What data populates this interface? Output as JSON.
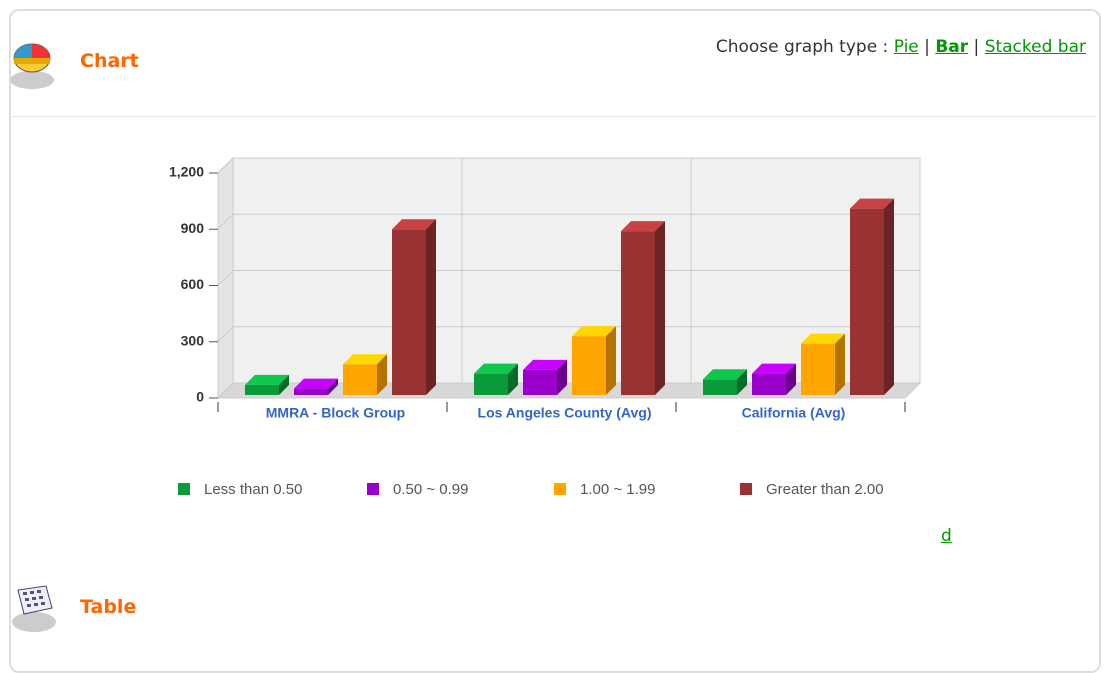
{
  "header": {
    "title": "Chart",
    "graph_type_label": "Choose graph type :",
    "separator": "|",
    "graph_types": [
      "Pie",
      "Bar",
      "Stacked bar"
    ]
  },
  "chart_data": {
    "type": "bar",
    "categories": [
      "MMRA - Block Group",
      "Los Angeles County (Avg)",
      "California (Avg)"
    ],
    "series": [
      {
        "name": "Less than 0.50",
        "color": "#0a9a3a",
        "values": [
          70,
          130,
          100
        ]
      },
      {
        "name": "0.50 ~ 0.99",
        "color": "#9900cc",
        "values": [
          50,
          150,
          130
        ]
      },
      {
        "name": "1.00 ~ 1.99",
        "color": "#ffa500",
        "values": [
          180,
          330,
          290
        ]
      },
      {
        "name": "Greater than 2.00",
        "color": "#993333",
        "values": [
          900,
          890,
          1010
        ]
      }
    ],
    "ylim": [
      0,
      1200
    ],
    "yticks": [
      0,
      300,
      600,
      900,
      {
        "value": 1200,
        "label": "1,200"
      }
    ],
    "grid": true,
    "legend": "bottom"
  },
  "download_link": "d",
  "table_section": {
    "title": "Table"
  }
}
